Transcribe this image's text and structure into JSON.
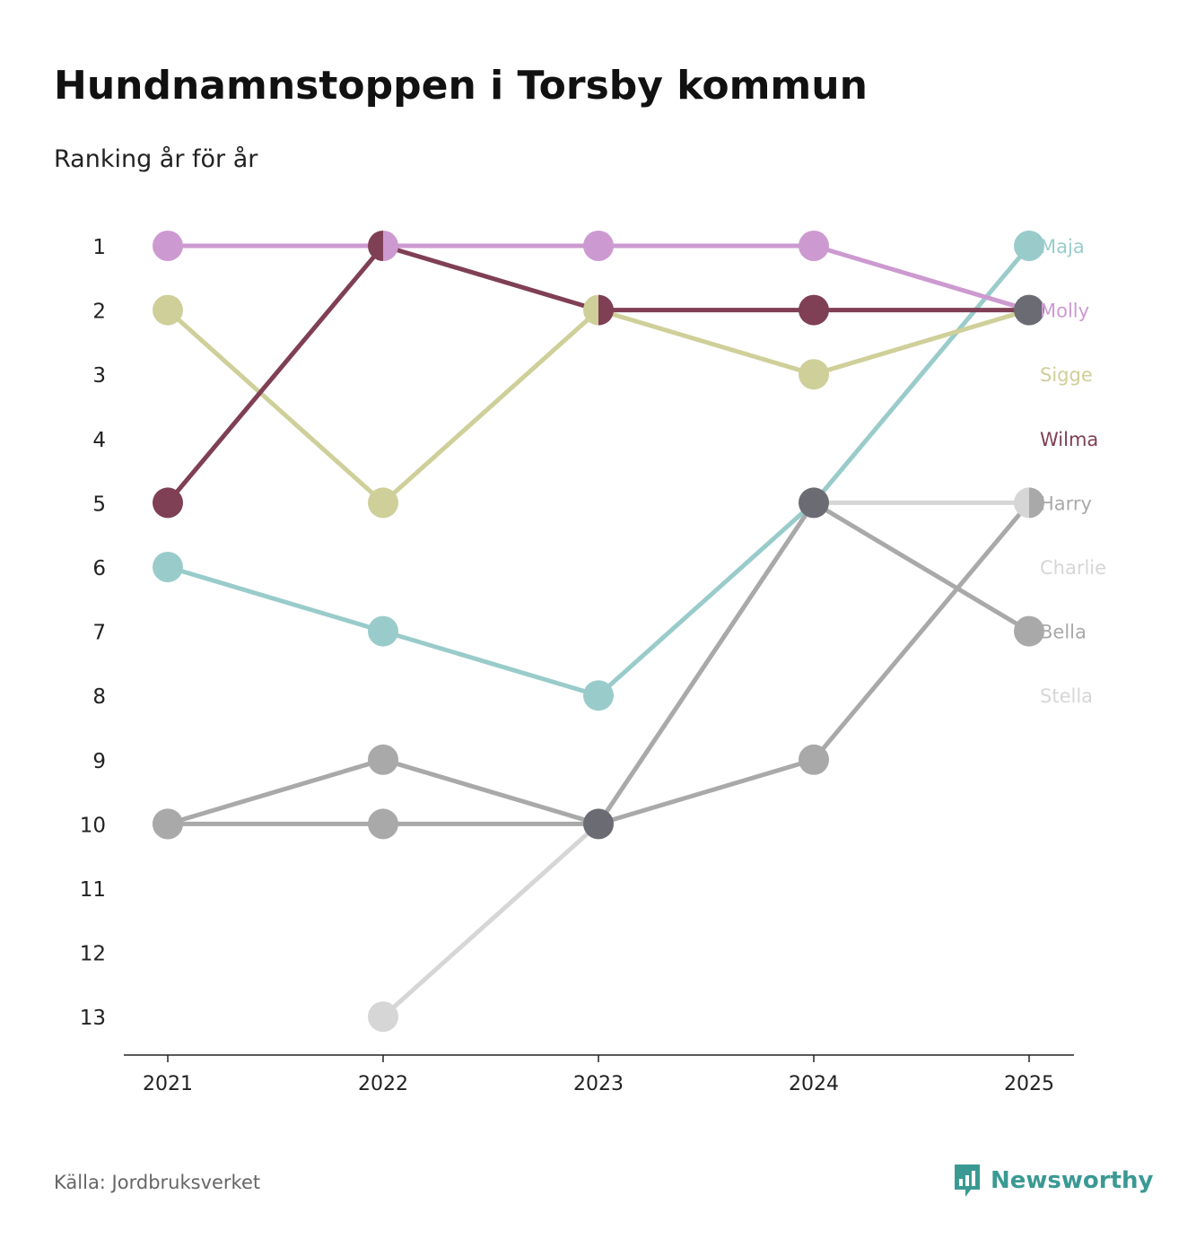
{
  "title": "Hundnamnstoppen i Torsby kommun",
  "subtitle": "Ranking år för år",
  "source": "Källa: Jordbruksverket",
  "brand": {
    "name": "Newsworthy",
    "icon": "bar-chart-icon",
    "color": "#3a9a93"
  },
  "chart_data": {
    "type": "line",
    "title": "Hundnamnstoppen i Torsby kommun",
    "subtitle": "Ranking år för år",
    "xlabel": "",
    "ylabel": "",
    "x": [
      "2021",
      "2022",
      "2023",
      "2024",
      "2025"
    ],
    "y_ticks": [
      "1",
      "2",
      "3",
      "4",
      "5",
      "6",
      "7",
      "8",
      "9",
      "10",
      "11",
      "12",
      "13"
    ],
    "ylim": [
      1,
      13
    ],
    "y_inverted": true,
    "label_ranks": [
      1,
      2,
      3,
      4,
      5,
      6,
      7,
      8
    ],
    "series": [
      {
        "name": "Stella",
        "color": "#d6d6d6",
        "values": [
          null,
          13,
          10,
          5,
          5
        ]
      },
      {
        "name": "Charlie",
        "color": "#d6d6d6",
        "values": [
          null,
          null,
          null,
          null,
          null
        ]
      },
      {
        "name": "Bella",
        "color": "#a9a9a9",
        "values": [
          10,
          9,
          10,
          5,
          7
        ]
      },
      {
        "name": "Harry",
        "color": "#a9a9a9",
        "values": [
          10,
          10,
          10,
          9,
          5
        ]
      },
      {
        "name": "Maja",
        "color": "#9acbcb",
        "values": [
          6,
          7,
          8,
          5,
          1
        ]
      },
      {
        "name": "Sigge",
        "color": "#cfcf9a",
        "values": [
          2,
          5,
          2,
          3,
          2
        ]
      },
      {
        "name": "Wilma",
        "color": "#7f3f55",
        "values": [
          5,
          1,
          2,
          2,
          2
        ]
      },
      {
        "name": "Molly",
        "color": "#cc9ad0",
        "values": [
          1,
          1,
          1,
          1,
          2
        ]
      }
    ],
    "shared_point_color": "#6b6b73"
  }
}
